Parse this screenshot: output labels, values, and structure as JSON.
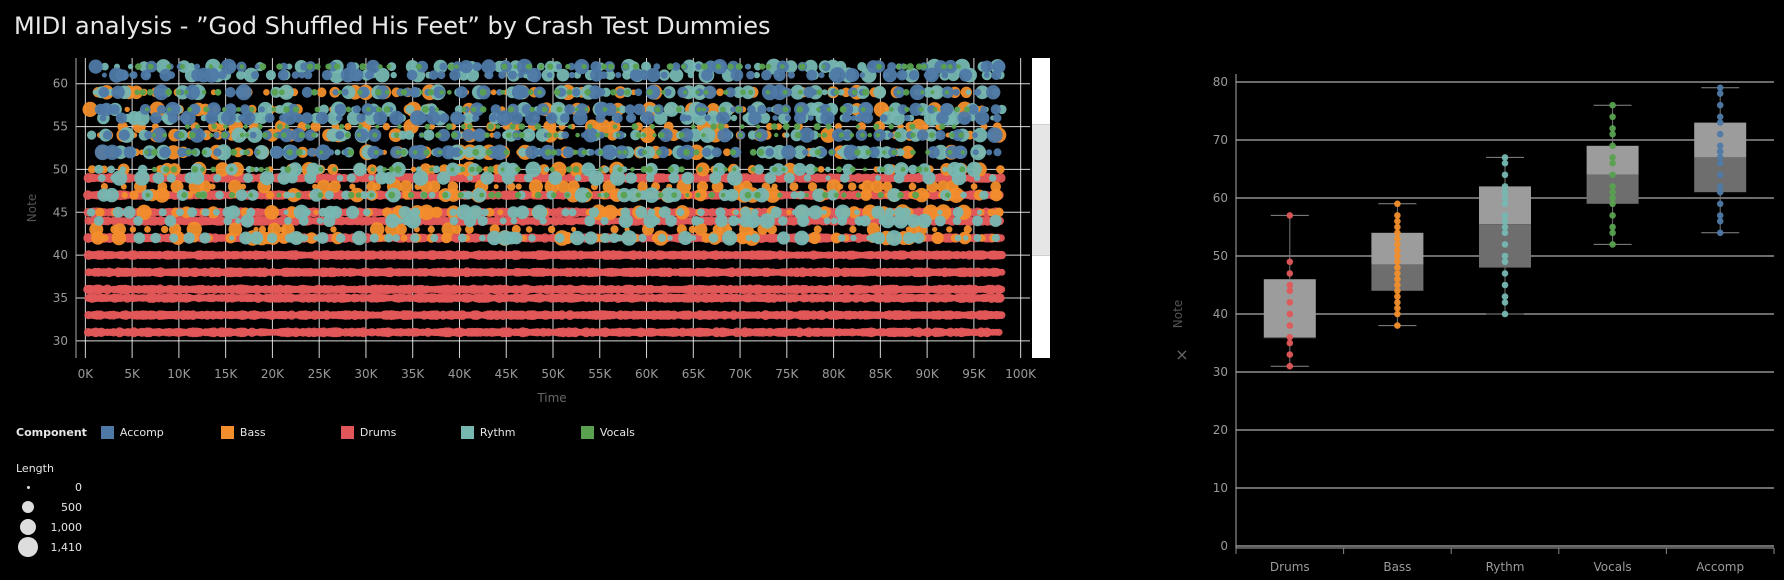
{
  "title": "MIDI analysis - ”God Shuffled His Feet” by Crash Test Dummies",
  "colors": {
    "Accomp": "#4e79a7",
    "Bass": "#f28e2b",
    "Drums": "#e15759",
    "Rythm": "#76b7b2",
    "Vocals": "#59a14f",
    "grid": "#ffffff",
    "axis_text": "#9a9a9a"
  },
  "legend": {
    "title": "Component",
    "items": [
      "Accomp",
      "Bass",
      "Drums",
      "Rythm",
      "Vocals"
    ]
  },
  "size_legend": {
    "title": "Length",
    "items": [
      {
        "label": "0",
        "value": 0
      },
      {
        "label": "500",
        "value": 500
      },
      {
        "label": "1,000",
        "value": 1000
      },
      {
        "label": "1,410",
        "value": 1410
      }
    ]
  },
  "chart_data": [
    {
      "type": "scatter",
      "xlabel": "Time",
      "ylabel": "Note",
      "xlim": [
        -1000,
        101000
      ],
      "ylim": [
        28,
        63
      ],
      "xticks": [
        0,
        5000,
        10000,
        15000,
        20000,
        25000,
        30000,
        35000,
        40000,
        45000,
        50000,
        55000,
        60000,
        65000,
        70000,
        75000,
        80000,
        85000,
        90000,
        95000,
        100000
      ],
      "xtick_labels": [
        "0K",
        "5K",
        "10K",
        "15K",
        "20K",
        "25K",
        "30K",
        "35K",
        "40K",
        "45K",
        "50K",
        "55K",
        "60K",
        "65K",
        "70K",
        "75K",
        "80K",
        "85K",
        "90K",
        "95K",
        "100K"
      ],
      "yticks": [
        30,
        35,
        40,
        45,
        50,
        55,
        60
      ],
      "grid": true,
      "series": [
        {
          "name": "Drums",
          "notes": [
            31,
            33,
            35,
            36,
            38,
            40,
            42,
            44,
            45,
            47,
            49
          ],
          "x_range": [
            0,
            98000
          ]
        },
        {
          "name": "Bass",
          "notes": [
            42,
            43,
            45,
            47,
            48,
            50,
            52,
            54,
            55,
            57,
            59
          ],
          "x_range": [
            0,
            98000
          ]
        },
        {
          "name": "Rythm",
          "notes": [
            42,
            44,
            45,
            47,
            49,
            50,
            52,
            54,
            56,
            57,
            59,
            61,
            62
          ],
          "x_range": [
            0,
            98000
          ]
        },
        {
          "name": "Accomp",
          "notes": [
            52,
            54,
            56,
            57,
            59,
            61,
            62
          ],
          "x_range": [
            0,
            98000
          ]
        },
        {
          "name": "Vocals",
          "notes": [
            47,
            50,
            52,
            54,
            55,
            57,
            59,
            62
          ],
          "x_range": [
            5000,
            95000
          ]
        }
      ],
      "size_field": "Length",
      "size_range": [
        0,
        1410
      ]
    },
    {
      "type": "box",
      "ylabel": "Note",
      "categories": [
        "Drums",
        "Bass",
        "Rythm",
        "Vocals",
        "Accomp"
      ],
      "ylim": [
        0,
        80
      ],
      "yticks": [
        0,
        10,
        20,
        30,
        40,
        50,
        60,
        70,
        80
      ],
      "grid": true,
      "boxes": [
        {
          "name": "Drums",
          "min": 31,
          "q1": 36,
          "median": 36,
          "q3": 46,
          "max": 57,
          "points": [
            31,
            33,
            35,
            36,
            38,
            40,
            42,
            44,
            45,
            47,
            49,
            57
          ]
        },
        {
          "name": "Bass",
          "min": 38,
          "q1": 44,
          "median": 48.5,
          "q3": 54,
          "max": 59,
          "points": [
            38,
            40,
            41,
            42,
            43,
            44,
            45,
            46,
            47,
            48,
            49,
            50,
            51,
            52,
            53,
            54,
            55,
            56,
            57,
            59
          ]
        },
        {
          "name": "Rythm",
          "min": 40,
          "q1": 48,
          "median": 55.5,
          "q3": 62,
          "max": 67,
          "points": [
            40,
            42,
            43,
            45,
            47,
            49,
            50,
            52,
            54,
            55,
            56,
            57,
            59,
            60,
            61,
            62,
            64,
            66,
            67
          ]
        },
        {
          "name": "Vocals",
          "min": 52,
          "q1": 59,
          "median": 64,
          "q3": 69,
          "max": 76,
          "points": [
            52,
            54,
            55,
            57,
            59,
            60,
            61,
            62,
            64,
            66,
            67,
            69,
            71,
            72,
            74,
            76
          ]
        },
        {
          "name": "Accomp",
          "min": 54,
          "q1": 61,
          "median": 67,
          "q3": 73,
          "max": 79,
          "points": [
            54,
            56,
            57,
            59,
            61,
            62,
            64,
            66,
            67,
            68,
            69,
            71,
            73,
            74,
            76,
            78,
            79
          ]
        }
      ]
    }
  ]
}
